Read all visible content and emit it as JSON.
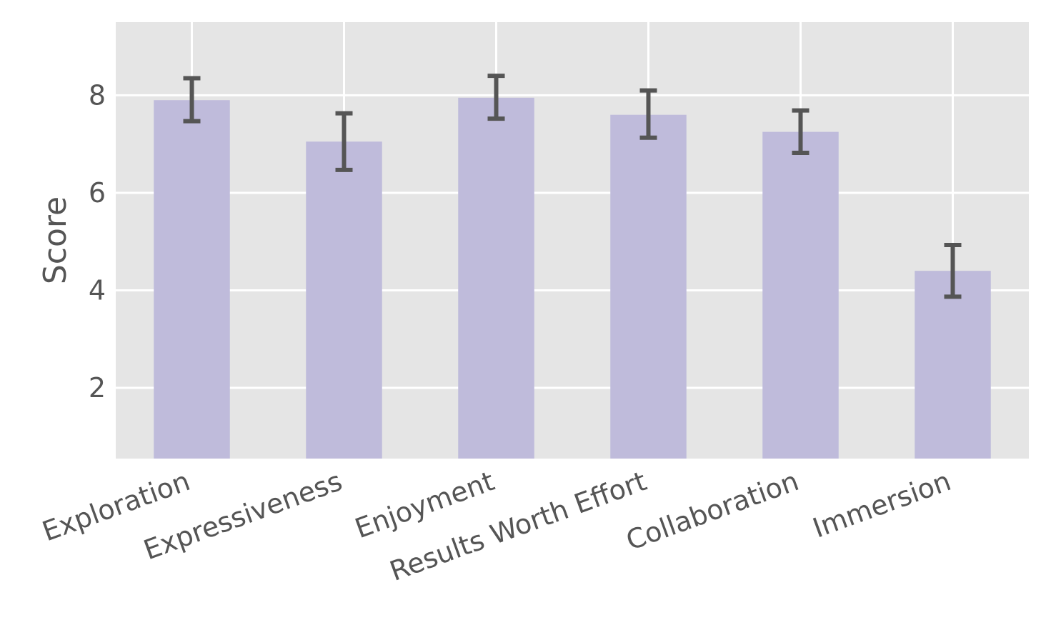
{
  "chart_data": {
    "type": "bar",
    "title": "",
    "xlabel": "",
    "ylabel": "Score",
    "categories": [
      "Exploration",
      "Expressiveness",
      "Enjoyment",
      "Results Worth Effort",
      "Collaboration",
      "Immersion"
    ],
    "values": [
      7.9,
      7.05,
      7.95,
      7.6,
      7.25,
      4.4
    ],
    "error_low": [
      7.47,
      6.47,
      7.52,
      7.13,
      6.82,
      3.87
    ],
    "error_high": [
      8.35,
      7.63,
      8.4,
      8.1,
      7.69,
      4.93
    ],
    "ylim": [
      0.55,
      9.5
    ],
    "yticks": [
      "2",
      "4",
      "6",
      "8"
    ],
    "grid": true,
    "colors": {
      "bar": "#bfbbdb",
      "error": "#555555",
      "plot_background": "#e5e5e5",
      "grid": "#ffffff",
      "text": "#555555"
    }
  }
}
